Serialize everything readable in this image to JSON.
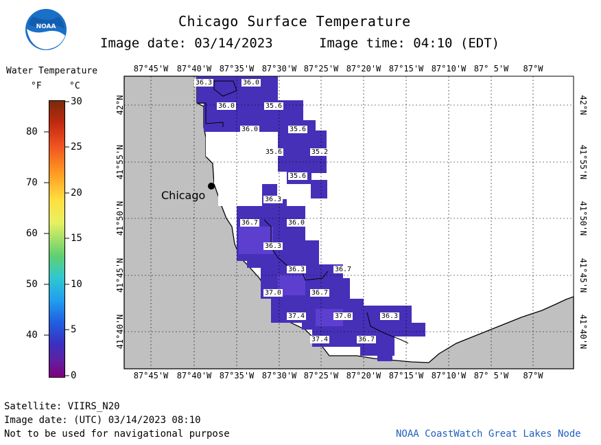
{
  "header": {
    "title": "Chicago Surface Temperature",
    "image_date_label": "Image date: 03/14/2023",
    "image_time_label": "Image time: 04:10 (EDT)"
  },
  "logo": {
    "text": "NOAA"
  },
  "legend": {
    "title": "Water Temperature",
    "unit_f": "°F",
    "unit_c": "°C",
    "f_ticks": [
      "80",
      "70",
      "60",
      "50",
      "40"
    ],
    "c_ticks": [
      "30",
      "25",
      "20",
      "15",
      "10",
      "5",
      "0"
    ]
  },
  "map": {
    "lon_labels": [
      "87°45'W",
      "87°40'W",
      "87°35'W",
      "87°30'W",
      "87°25'W",
      "87°20'W",
      "87°15'W",
      "87°10'W",
      "87° 5'W",
      "87°W"
    ],
    "lat_labels": [
      "42°N",
      "41°55'N",
      "41°50'N",
      "41°45'N",
      "41°40'N"
    ],
    "city_label": "Chicago",
    "temperatures": [
      "36.3",
      "36.0",
      "36.0",
      "35.6",
      "36.0",
      "35.6",
      "35.6",
      "35.2",
      "35.6",
      "36.3",
      "36.7",
      "36.0",
      "36.3",
      "36.3",
      "36.7",
      "37.0",
      "36.7",
      "37.4",
      "37.0",
      "36.3",
      "37.4",
      "36.7"
    ],
    "colors": {
      "land": "#c0c0c0",
      "water_main": "#4630b8",
      "water_alt": "#5d3fd0",
      "grid": "#000000"
    }
  },
  "footer": {
    "satellite": "Satellite: VIIRS_N20",
    "utc_date": "Image date: (UTC) 03/14/2023  08:10",
    "disclaimer": "Not to be used for navigational purpose",
    "credit": "NOAA CoastWatch Great Lakes Node"
  }
}
